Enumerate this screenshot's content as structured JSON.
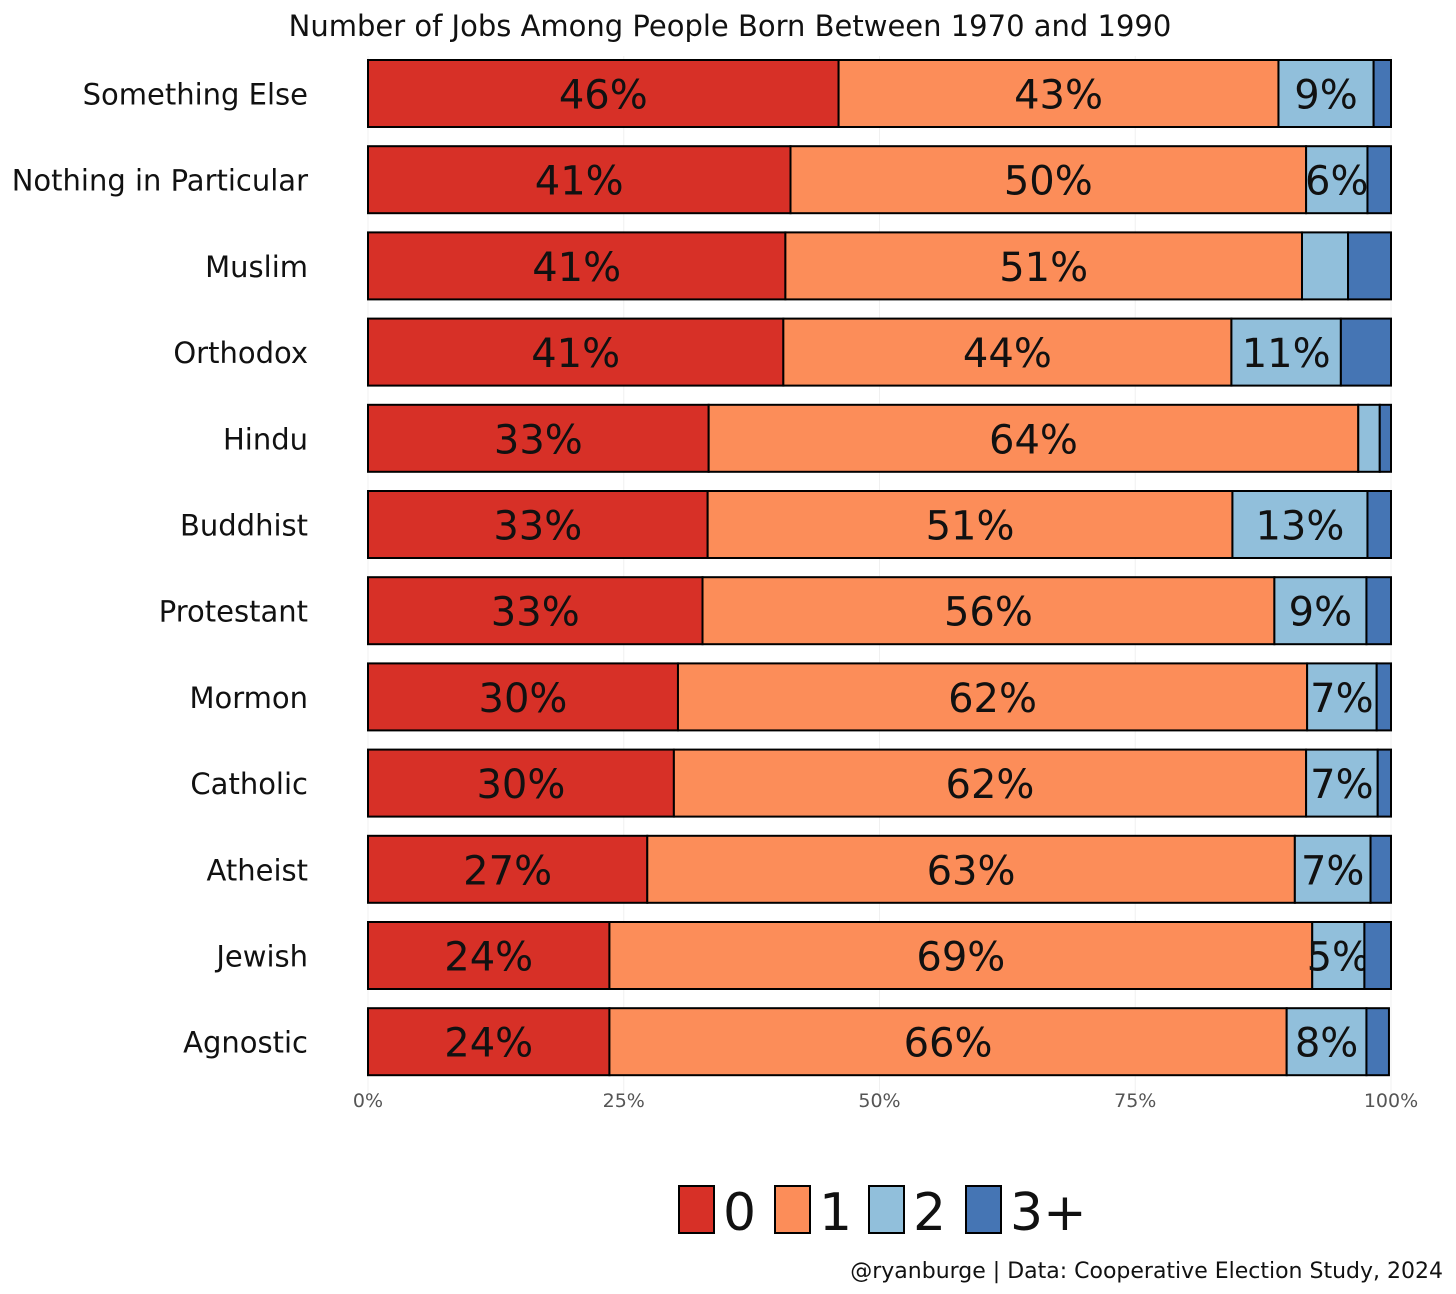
{
  "chart_data": {
    "type": "bar",
    "orientation": "horizontal",
    "stacked": true,
    "title": "Number of Jobs Among People Born Between 1970 and 1990",
    "caption": "@ryanburge | Data: Cooperative Election Study, 2024",
    "xlim": [
      0,
      100
    ],
    "x_ticks": [
      "0%",
      "25%",
      "50%",
      "75%",
      "100%"
    ],
    "legend_position": "bottom",
    "categories": [
      "Something Else",
      "Nothing in Particular",
      "Muslim",
      "Orthodox",
      "Hindu",
      "Buddhist",
      "Protestant",
      "Mormon",
      "Catholic",
      "Atheist",
      "Jewish",
      "Agnostic"
    ],
    "series": [
      {
        "name": "0",
        "color": "#d73027",
        "values": [
          46,
          41.3,
          40.8,
          40.6,
          33.3,
          33.2,
          32.7,
          30.3,
          29.9,
          27.3,
          23.6,
          23.6
        ]
      },
      {
        "name": "1",
        "color": "#fc8d59",
        "values": [
          43,
          50.4,
          50.5,
          43.8,
          63.5,
          51.3,
          55.9,
          61.5,
          61.8,
          63.3,
          68.7,
          66.2
        ]
      },
      {
        "name": "2",
        "color": "#91bfdb",
        "values": [
          9.3,
          6.0,
          4.5,
          10.7,
          2.1,
          13.2,
          9.0,
          6.8,
          7.0,
          7.4,
          5.1,
          7.8
        ]
      },
      {
        "name": "3+",
        "color": "#4575b4",
        "values": [
          1.7,
          2.3,
          4.2,
          4.9,
          1.1,
          2.3,
          2.4,
          1.4,
          1.3,
          2.0,
          2.6,
          2.2
        ]
      }
    ],
    "labels": [
      [
        "46%",
        "43%",
        "9%",
        ""
      ],
      [
        "41%",
        "50%",
        "6%",
        ""
      ],
      [
        "41%",
        "51%",
        "",
        ""
      ],
      [
        "41%",
        "44%",
        "11%",
        ""
      ],
      [
        "33%",
        "64%",
        "",
        ""
      ],
      [
        "33%",
        "51%",
        "13%",
        ""
      ],
      [
        "33%",
        "56%",
        "9%",
        ""
      ],
      [
        "30%",
        "62%",
        "7%",
        ""
      ],
      [
        "30%",
        "62%",
        "7%",
        ""
      ],
      [
        "27%",
        "63%",
        "7%",
        ""
      ],
      [
        "24%",
        "69%",
        "5%",
        ""
      ],
      [
        "24%",
        "66%",
        "8%",
        ""
      ]
    ]
  }
}
